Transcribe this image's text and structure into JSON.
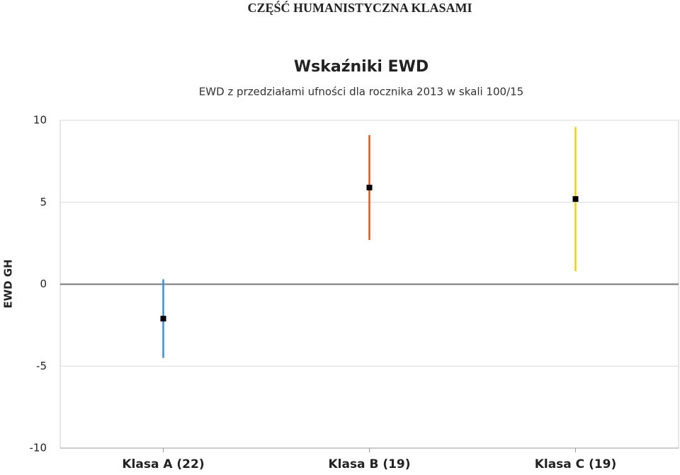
{
  "header": {
    "title": "CZĘŚĆ HUMANISTYCZNA KLASAMI"
  },
  "chart_data": {
    "type": "errorbar",
    "title": "Wskaźniki EWD",
    "subtitle": "EWD z przedziałami ufności dla rocznika 2013 w skali 100/15",
    "y_label": "EWD GH",
    "categories": [
      "Klasa A (22)",
      "Klasa B (19)",
      "Klasa C (19)"
    ],
    "values": [
      -2.1,
      5.9,
      5.2
    ],
    "errors": [
      2.4,
      3.2,
      4.4
    ],
    "colors": [
      "#3a8fd6",
      "#e8501e",
      "#f5d000"
    ],
    "marker_color": "#000000",
    "ylim": [
      -10,
      10
    ],
    "yticks": [
      -10,
      -5,
      0,
      5,
      10
    ],
    "grid": true
  }
}
